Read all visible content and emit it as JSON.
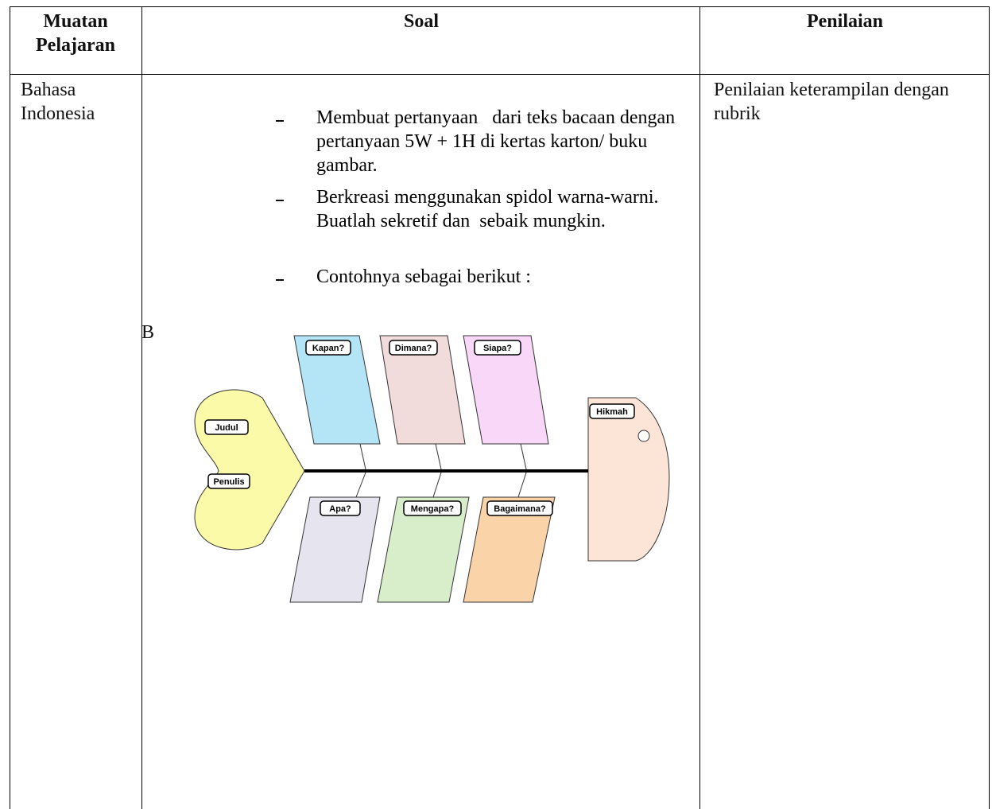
{
  "table": {
    "headers": [
      "Muatan Pelajaran",
      "Soal",
      "Penilaian"
    ],
    "rows": [
      {
        "subject": "Bahasa Indonesia",
        "soal": {
          "items": [
            "Membuat pertanyaan   dari teks bacaan dengan pertanyaan 5W + 1H di kertas karton/ buku gambar.",
            "Berkreasi menggunakan spidol warna-warni. Buatlah sekretif dan  sebaik mungkin.",
            "Contohnya sebagai berikut :"
          ],
          "marker": "B",
          "diagram": {
            "upper": [
              "Kapan?",
              "Dimana?",
              "Siapa?"
            ],
            "lower": [
              "Apa?",
              "Mengapa?",
              "Bagaimana?"
            ],
            "head": [
              "Judul",
              "Penulis"
            ],
            "tail": "Hikmah"
          }
        },
        "assessment": "Penilaian keterampilan dengan rubrik"
      }
    ]
  }
}
